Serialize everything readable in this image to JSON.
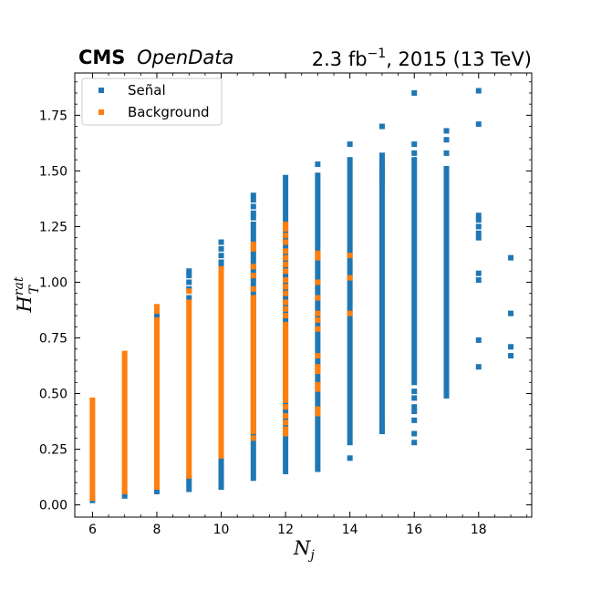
{
  "chart_data": {
    "type": "scatter",
    "header": {
      "experiment": "CMS",
      "qualifier": "OpenData",
      "luminosity": "2.3 fb",
      "lumi_exponent": "−1",
      "run_info": ", 2015 (13 TeV)"
    },
    "xlabel": {
      "main": "N",
      "sub": "j"
    },
    "ylabel": {
      "main": "H",
      "sub": "T",
      "sup": "rat"
    },
    "xlim": [
      5.45,
      19.65
    ],
    "ylim": [
      -0.055,
      1.94
    ],
    "xticks": [
      6,
      8,
      10,
      12,
      14,
      16,
      18
    ],
    "xtick_labels": [
      "6",
      "8",
      "10",
      "12",
      "14",
      "16",
      "18"
    ],
    "yticks": [
      0.0,
      0.25,
      0.5,
      0.75,
      1.0,
      1.25,
      1.5,
      1.75
    ],
    "ytick_labels": [
      "0.00",
      "0.25",
      "0.50",
      "0.75",
      "1.00",
      "1.25",
      "1.50",
      "1.75"
    ],
    "grid": false,
    "legend_position": "upper-left",
    "series": [
      {
        "name": "Señal",
        "color": "#1f77b4",
        "ranges": [
          {
            "x": 6,
            "y": [
              0.02,
              0.03
            ]
          },
          {
            "x": 7,
            "y": [
              0.04,
              0.05
            ]
          },
          {
            "x": 8,
            "y": [
              0.06,
              0.07
            ]
          },
          {
            "x": 9,
            "y": [
              0.07,
              0.12
            ]
          },
          {
            "x": 10,
            "y": [
              0.08,
              0.21
            ]
          },
          {
            "x": 11,
            "y": [
              0.12,
              1.26
            ]
          },
          {
            "x": 12,
            "y": [
              0.15,
              1.47
            ]
          },
          {
            "x": 13,
            "y": [
              0.18,
              1.48
            ]
          },
          {
            "x": 14,
            "y": [
              0.28,
              1.55
            ]
          },
          {
            "x": 15,
            "y": [
              0.38,
              1.57
            ]
          },
          {
            "x": 16,
            "y": [
              0.55,
              1.55
            ]
          },
          {
            "x": 17,
            "y": [
              0.49,
              1.51
            ]
          }
        ],
        "points": [
          {
            "x": 8,
            "y": 0.85
          },
          {
            "x": 9,
            "y": 1.05
          },
          {
            "x": 9,
            "y": 1.03
          },
          {
            "x": 9,
            "y": 1.0
          },
          {
            "x": 9,
            "y": 0.97
          },
          {
            "x": 9,
            "y": 0.93
          },
          {
            "x": 10,
            "y": 1.18
          },
          {
            "x": 10,
            "y": 1.15
          },
          {
            "x": 10,
            "y": 1.12
          },
          {
            "x": 10,
            "y": 1.09
          },
          {
            "x": 10,
            "y": 1.07
          },
          {
            "x": 10,
            "y": 0.1
          },
          {
            "x": 11,
            "y": 1.39
          },
          {
            "x": 11,
            "y": 1.37
          },
          {
            "x": 11,
            "y": 1.34
          },
          {
            "x": 11,
            "y": 1.31
          },
          {
            "x": 11,
            "y": 1.29
          },
          {
            "x": 13,
            "y": 1.53
          },
          {
            "x": 13,
            "y": 0.16
          },
          {
            "x": 14,
            "y": 1.62
          },
          {
            "x": 14,
            "y": 0.21
          },
          {
            "x": 15,
            "y": 1.7
          },
          {
            "x": 15,
            "y": 1.52
          },
          {
            "x": 15,
            "y": 1.49
          },
          {
            "x": 15,
            "y": 1.45
          },
          {
            "x": 15,
            "y": 0.36
          },
          {
            "x": 15,
            "y": 0.34
          },
          {
            "x": 15,
            "y": 0.33
          },
          {
            "x": 16,
            "y": 1.85
          },
          {
            "x": 16,
            "y": 1.62
          },
          {
            "x": 16,
            "y": 1.58
          },
          {
            "x": 16,
            "y": 0.51
          },
          {
            "x": 16,
            "y": 0.48
          },
          {
            "x": 16,
            "y": 0.44
          },
          {
            "x": 16,
            "y": 0.42
          },
          {
            "x": 16,
            "y": 0.38
          },
          {
            "x": 16,
            "y": 0.32
          },
          {
            "x": 16,
            "y": 0.28
          },
          {
            "x": 17,
            "y": 1.68
          },
          {
            "x": 17,
            "y": 1.64
          },
          {
            "x": 17,
            "y": 1.58
          },
          {
            "x": 18,
            "y": 1.86
          },
          {
            "x": 18,
            "y": 1.71
          },
          {
            "x": 18,
            "y": 1.3
          },
          {
            "x": 18,
            "y": 1.28
          },
          {
            "x": 18,
            "y": 1.25
          },
          {
            "x": 18,
            "y": 1.22
          },
          {
            "x": 18,
            "y": 1.2
          },
          {
            "x": 18,
            "y": 1.04
          },
          {
            "x": 18,
            "y": 1.01
          },
          {
            "x": 18,
            "y": 0.74
          },
          {
            "x": 18,
            "y": 0.62
          },
          {
            "x": 19,
            "y": 1.11
          },
          {
            "x": 19,
            "y": 0.86
          },
          {
            "x": 19,
            "y": 0.71
          },
          {
            "x": 19,
            "y": 0.67
          }
        ]
      },
      {
        "name": "Background",
        "color": "#ff7f0e",
        "ranges": [
          {
            "x": 6,
            "y": [
              0.03,
              0.47
            ]
          },
          {
            "x": 7,
            "y": [
              0.06,
              0.68
            ]
          },
          {
            "x": 8,
            "y": [
              0.08,
              0.83
            ]
          },
          {
            "x": 9,
            "y": [
              0.13,
              0.91
            ]
          },
          {
            "x": 10,
            "y": [
              0.22,
              1.06
            ]
          },
          {
            "x": 11,
            "y": [
              0.33,
              0.93
            ]
          },
          {
            "x": 12,
            "y": [
              0.49,
              0.81
            ]
          }
        ],
        "points": [
          {
            "x": 8,
            "y": 0.89
          },
          {
            "x": 8,
            "y": 0.87
          },
          {
            "x": 9,
            "y": 0.96
          },
          {
            "x": 11,
            "y": 1.17
          },
          {
            "x": 11,
            "y": 1.15
          },
          {
            "x": 11,
            "y": 1.07
          },
          {
            "x": 11,
            "y": 1.03
          },
          {
            "x": 11,
            "y": 0.97
          },
          {
            "x": 11,
            "y": 0.3
          },
          {
            "x": 12,
            "y": 1.26
          },
          {
            "x": 12,
            "y": 1.24
          },
          {
            "x": 12,
            "y": 1.21
          },
          {
            "x": 12,
            "y": 1.18
          },
          {
            "x": 12,
            "y": 1.14
          },
          {
            "x": 12,
            "y": 1.11
          },
          {
            "x": 12,
            "y": 1.08
          },
          {
            "x": 12,
            "y": 1.05
          },
          {
            "x": 12,
            "y": 1.01
          },
          {
            "x": 12,
            "y": 0.98
          },
          {
            "x": 12,
            "y": 0.95
          },
          {
            "x": 12,
            "y": 0.91
          },
          {
            "x": 12,
            "y": 0.88
          },
          {
            "x": 12,
            "y": 0.85
          },
          {
            "x": 12,
            "y": 0.47
          },
          {
            "x": 12,
            "y": 0.44
          },
          {
            "x": 12,
            "y": 0.4
          },
          {
            "x": 12,
            "y": 0.37
          },
          {
            "x": 12,
            "y": 0.34
          },
          {
            "x": 12,
            "y": 0.32
          },
          {
            "x": 13,
            "y": 1.13
          },
          {
            "x": 13,
            "y": 1.11
          },
          {
            "x": 13,
            "y": 1.0
          },
          {
            "x": 13,
            "y": 0.93
          },
          {
            "x": 13,
            "y": 0.86
          },
          {
            "x": 13,
            "y": 0.83
          },
          {
            "x": 13,
            "y": 0.79
          },
          {
            "x": 13,
            "y": 0.67
          },
          {
            "x": 13,
            "y": 0.62
          },
          {
            "x": 13,
            "y": 0.6
          },
          {
            "x": 13,
            "y": 0.54
          },
          {
            "x": 13,
            "y": 0.52
          },
          {
            "x": 13,
            "y": 0.43
          },
          {
            "x": 13,
            "y": 0.41
          },
          {
            "x": 14,
            "y": 1.12
          },
          {
            "x": 14,
            "y": 1.02
          },
          {
            "x": 14,
            "y": 0.86
          }
        ]
      }
    ]
  }
}
